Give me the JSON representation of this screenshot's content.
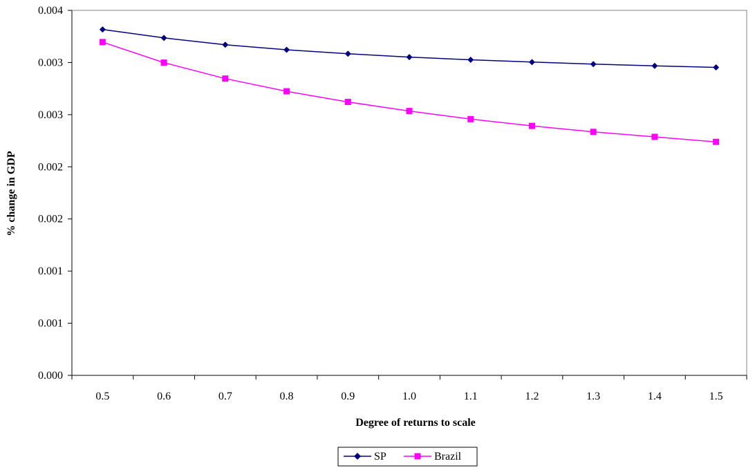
{
  "chart_data": {
    "type": "line",
    "xlabel": "Degree of returns to scale",
    "ylabel": "% change in GDP",
    "x": [
      0.5,
      0.6,
      0.7,
      0.8,
      0.9,
      1.0,
      1.1,
      1.2,
      1.3,
      1.4,
      1.5
    ],
    "x_tick_labels": [
      "0.5",
      "0.6",
      "0.7",
      "0.8",
      "0.9",
      "1.0",
      "1.1",
      "1.2",
      "1.3",
      "1.4",
      "1.5"
    ],
    "ylim": [
      0.0,
      0.0035
    ],
    "y_tick_values": [
      0.0,
      0.0005,
      0.001,
      0.0015,
      0.002,
      0.0025,
      0.003,
      0.0035
    ],
    "y_tick_labels": [
      "0.000",
      "0.001",
      "0.001",
      "0.002",
      "0.002",
      "0.003",
      "0.003",
      "0.004"
    ],
    "grid": false,
    "legend_position": "bottom-center",
    "series": [
      {
        "name": "SP",
        "color": "#000080",
        "marker": "diamond",
        "values": [
          0.003317,
          0.003236,
          0.00317,
          0.003122,
          0.003084,
          0.003052,
          0.003026,
          0.003004,
          0.002985,
          0.002968,
          0.002953
        ]
      },
      {
        "name": "Brazil",
        "color": "#FF00FF",
        "marker": "square",
        "values": [
          0.003196,
          0.002999,
          0.002846,
          0.002724,
          0.002622,
          0.002535,
          0.002457,
          0.002392,
          0.002335,
          0.002287,
          0.002239
        ]
      }
    ]
  }
}
